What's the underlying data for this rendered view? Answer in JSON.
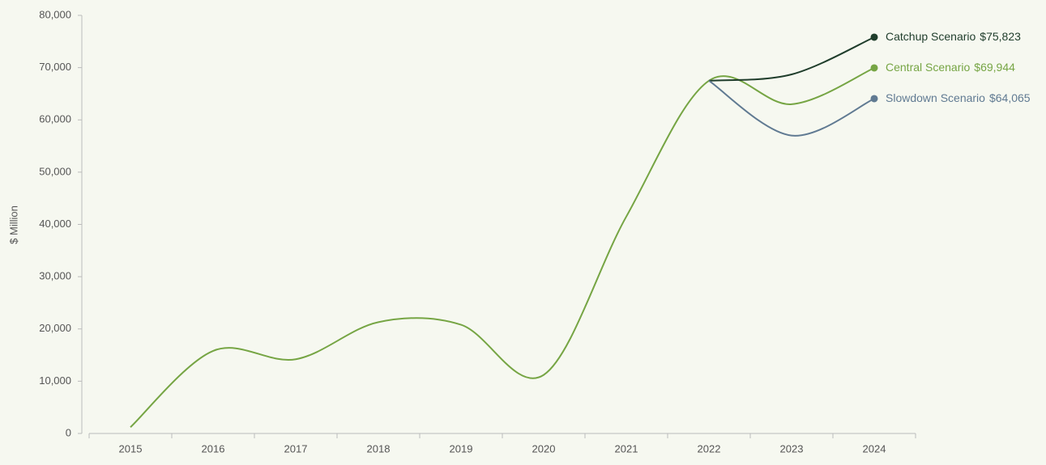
{
  "chart_data": {
    "type": "line",
    "y_label": "$ Million",
    "categories": [
      "2015",
      "2016",
      "2017",
      "2018",
      "2019",
      "2020",
      "2021",
      "2022",
      "2023",
      "2024"
    ],
    "series": [
      {
        "name": "Catchup Scenario",
        "color": "#1f3d2b",
        "values": [
          null,
          null,
          null,
          null,
          null,
          null,
          null,
          67500,
          68700,
          75823
        ],
        "value_labels": [
          null,
          null,
          null,
          null,
          null,
          null,
          null,
          null,
          null,
          "$75,823"
        ]
      },
      {
        "name": "Central Scenario",
        "color": "#76a544",
        "values": [
          1200,
          15800,
          14200,
          21300,
          20800,
          11200,
          41500,
          67500,
          63000,
          69944
        ],
        "value_labels": [
          null,
          null,
          null,
          null,
          null,
          null,
          null,
          null,
          null,
          "$69,944"
        ]
      },
      {
        "name": "Slowdown Scenario",
        "color": "#607a92",
        "values": [
          null,
          null,
          null,
          null,
          null,
          null,
          null,
          67500,
          57000,
          64065
        ],
        "value_labels": [
          null,
          null,
          null,
          null,
          null,
          null,
          null,
          null,
          null,
          "$64,065"
        ]
      }
    ],
    "ylim": [
      0,
      80000
    ],
    "yticks": [
      0,
      {
        "value": 10000,
        "label": "10,000"
      },
      {
        "value": 20000,
        "label": "20,000"
      },
      {
        "value": 30000,
        "label": "30,000"
      },
      {
        "value": 40000,
        "label": "40,000"
      },
      {
        "value": 50000,
        "label": "50,000"
      },
      {
        "value": 60000,
        "label": "60,000"
      },
      {
        "value": 70000,
        "label": "70,000"
      },
      {
        "value": 80000,
        "label": "80,000"
      }
    ],
    "grid": false
  }
}
